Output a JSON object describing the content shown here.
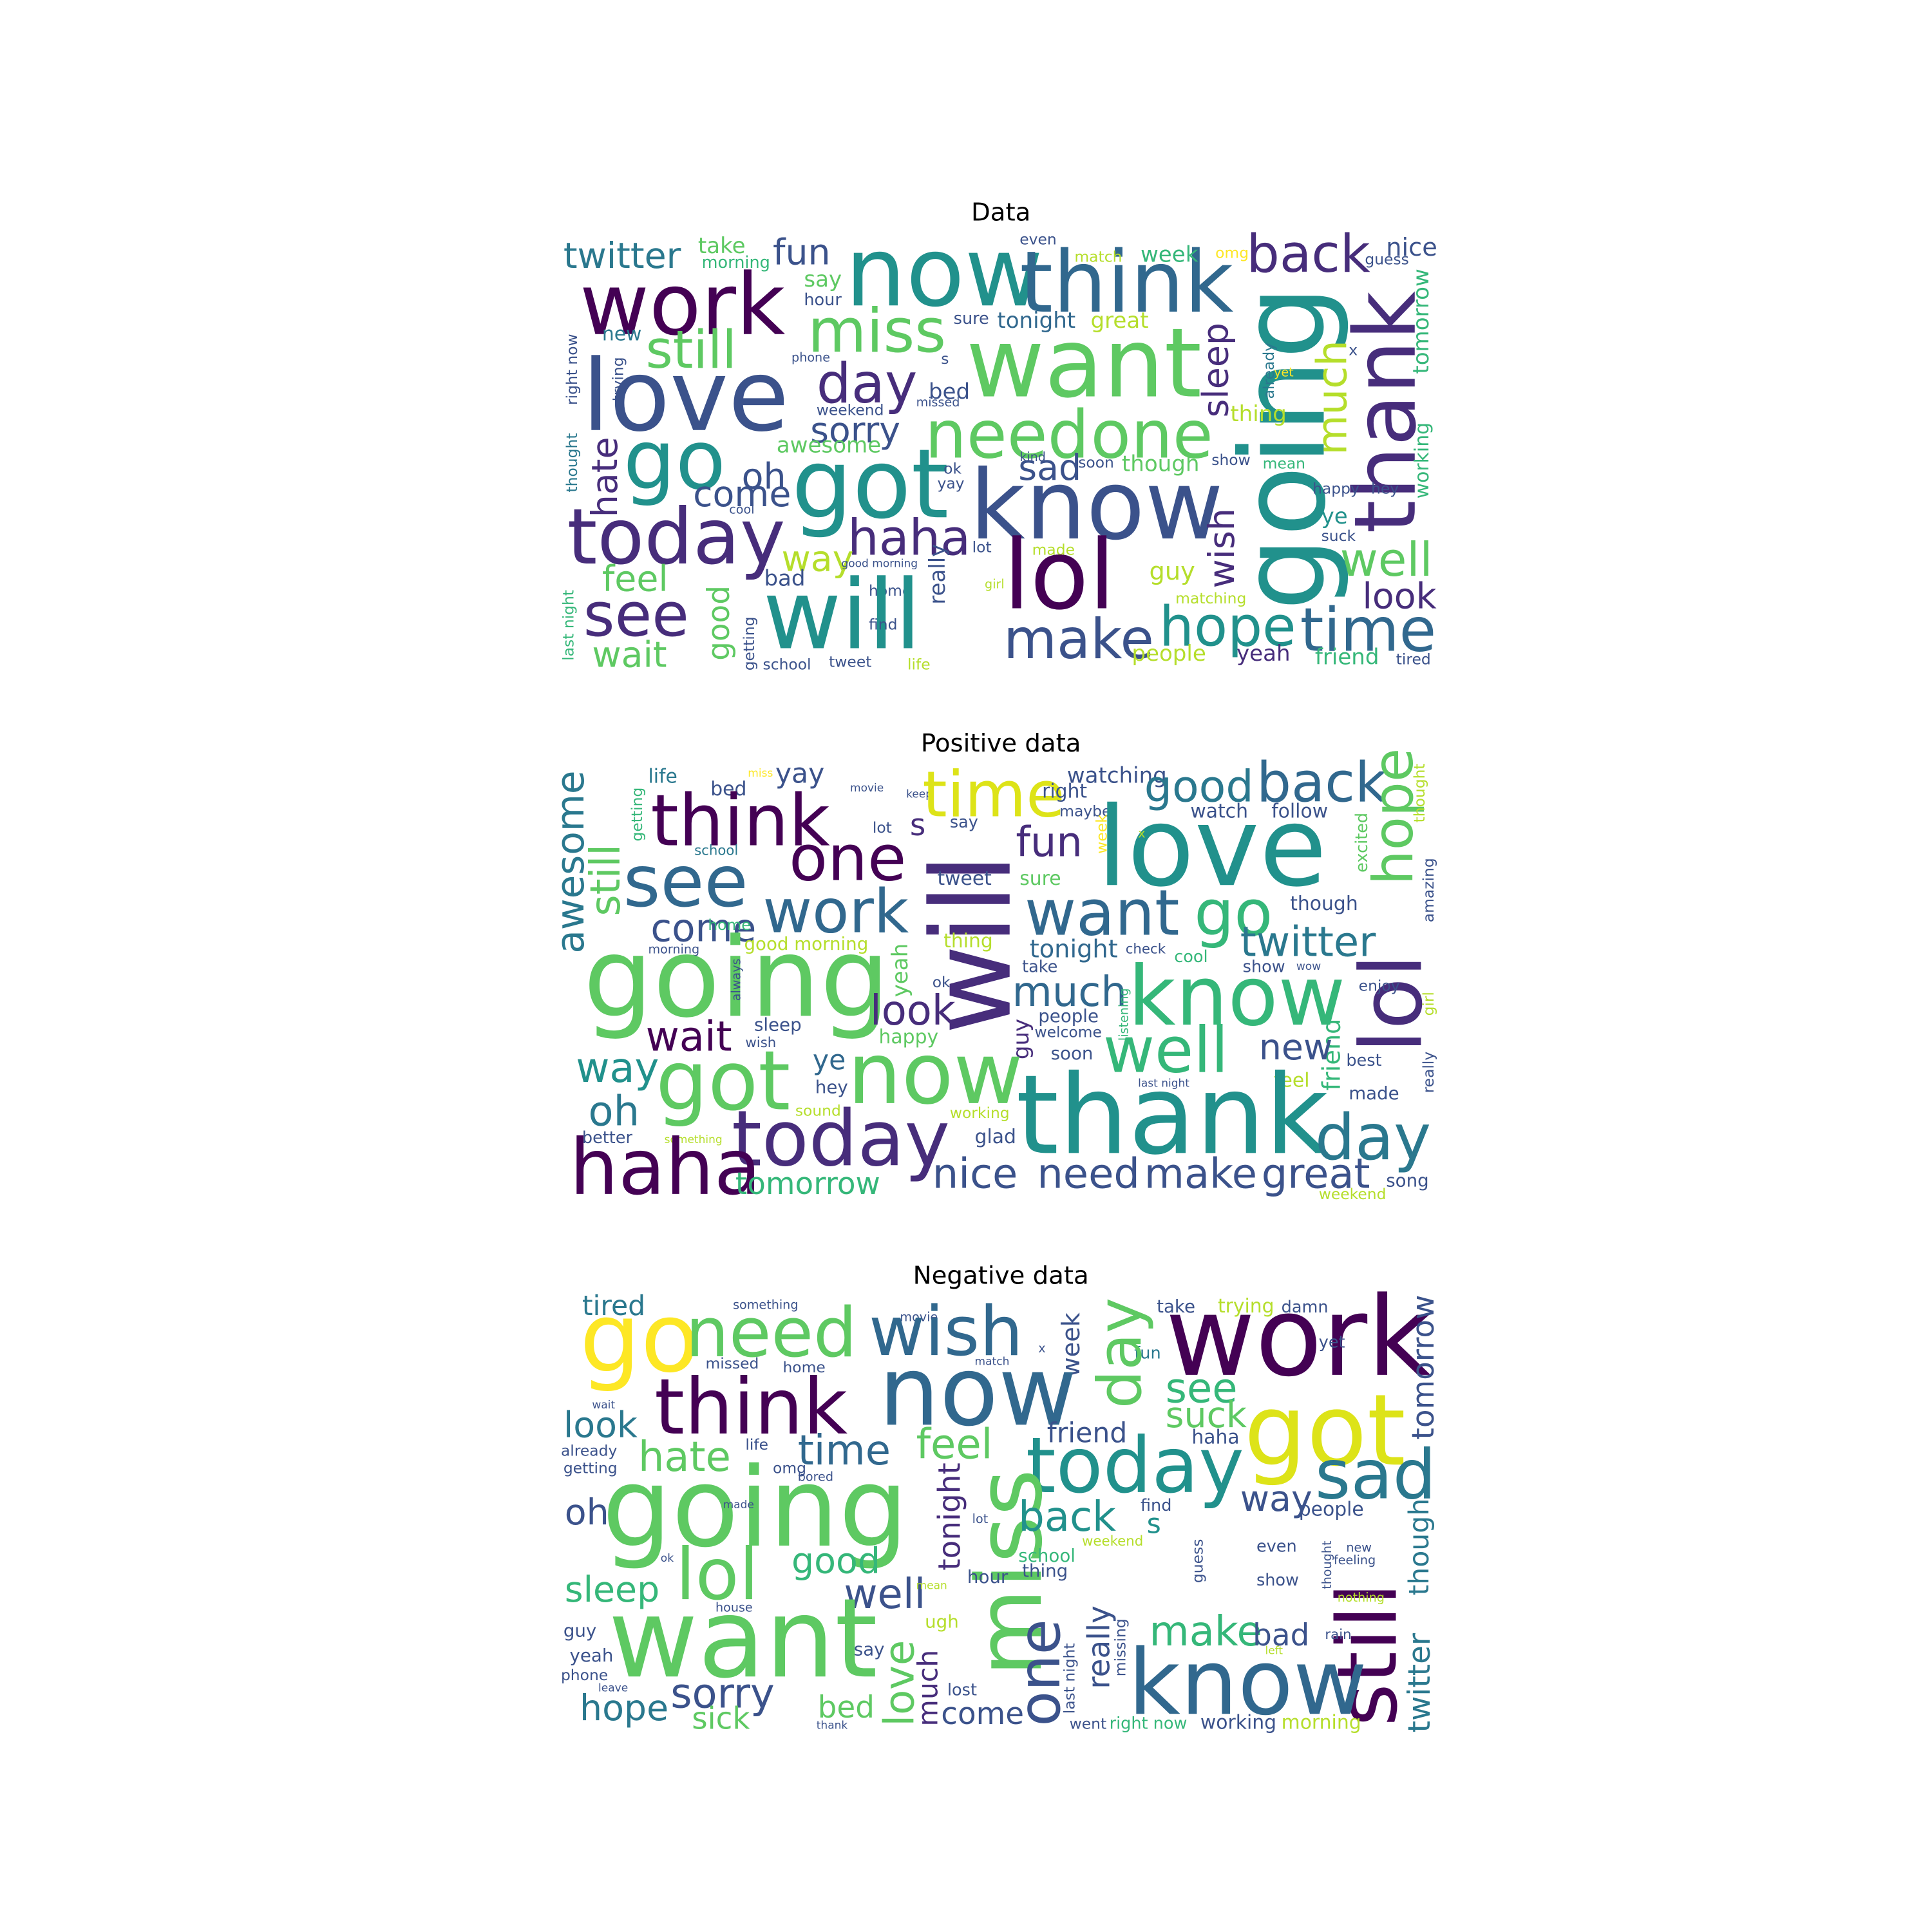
{
  "panels": [
    {
      "title": "Data",
      "words": [
        "twitter",
        "take",
        "morning",
        "fun",
        "now",
        "think",
        "back",
        "nice",
        "even",
        "match",
        "week",
        "omg",
        "guess",
        "work",
        "say",
        "hour",
        "miss",
        "want",
        "sure",
        "tonight",
        "great",
        "going",
        "thank",
        "still",
        "new",
        "right now",
        "trying",
        "love",
        "day",
        "phone",
        "s",
        "bed",
        "weekend",
        "missed",
        "sleep",
        "already",
        "yet",
        "x",
        "tomorrow",
        "thing",
        "much",
        "need",
        "one",
        "go",
        "sorry",
        "awesome",
        "kind",
        "soon",
        "though",
        "show",
        "mean",
        "working",
        "got",
        "sad",
        "ok",
        "yay",
        "hate",
        "oh",
        "come",
        "cool",
        "know",
        "happy",
        "hey",
        "ye",
        "suck",
        "thought",
        "wish",
        "today",
        "haha",
        "lot",
        "made",
        "lol",
        "well",
        "feel",
        "way",
        "good morning",
        "bad",
        "home",
        "guy",
        "girl",
        "really",
        "see",
        "will",
        "find",
        "matching",
        "look",
        "hope",
        "time",
        "make",
        "good",
        "getting",
        "last night",
        "wait",
        "school",
        "tweet",
        "life",
        "people",
        "yeah",
        "friend",
        "tired"
      ]
    },
    {
      "title": "Positive data",
      "words": [
        "life",
        "yay",
        "bed",
        "miss",
        "movie",
        "keep",
        "time",
        "right",
        "watching",
        "maybe",
        "good",
        "back",
        "hope",
        "thought",
        "follow",
        "watch",
        "awesome",
        "still",
        "getting",
        "think",
        "s",
        "say",
        "lot",
        "school",
        "one",
        "see",
        "fun",
        "love",
        "will",
        "week",
        "x",
        "excited",
        "amazing",
        "work",
        "want",
        "go",
        "tweet",
        "sure",
        "though",
        "twitter",
        "come",
        "home",
        "morning",
        "thing",
        "tonight",
        "check",
        "cool",
        "show",
        "wow",
        "going",
        "good morning",
        "always",
        "yeah",
        "ok",
        "much",
        "take",
        "know",
        "lol",
        "enjoy",
        "look",
        "people",
        "sleep",
        "welcome",
        "wait",
        "listening",
        "wish",
        "happy",
        "guy",
        "friend",
        "girl",
        "really",
        "new",
        "best",
        "well",
        "way",
        "ye",
        "soon",
        "now",
        "got",
        "hey",
        "made",
        "oh",
        "feel",
        "sound",
        "working",
        "thank",
        "last night",
        "day",
        "better",
        "something",
        "glad",
        "today",
        "haha",
        "tomorrow",
        "nice",
        "need",
        "make",
        "great",
        "song",
        "weekend"
      ]
    },
    {
      "title": "Negative data",
      "words": [
        "something",
        "tired",
        "trying",
        "damn",
        "take",
        "movie",
        "match",
        "x",
        "fun",
        "go",
        "need",
        "wish",
        "work",
        "yet",
        "tomorrow",
        "day",
        "week",
        "missed",
        "home",
        "now",
        "think",
        "see",
        "got",
        "look",
        "wait",
        "suck",
        "friend",
        "haha",
        "feel",
        "hate",
        "time",
        "already",
        "life",
        "getting",
        "today",
        "sad",
        "omg",
        "bored",
        "going",
        "tonight",
        "miss",
        "way",
        "oh",
        "made",
        "back",
        "s",
        "find",
        "people",
        "though",
        "lol",
        "good",
        "school",
        "weekend",
        "even",
        "lot",
        "feeling",
        "new",
        "thought",
        "guess",
        "ok",
        "sleep",
        "well",
        "mean",
        "hour",
        "thing",
        "show",
        "still",
        "nothing",
        "house",
        "want",
        "rain",
        "guy",
        "ugh",
        "make",
        "bad",
        "left",
        "twitter",
        "yeah",
        "say",
        "one",
        "really",
        "last night",
        "missing",
        "love",
        "phone",
        "leave",
        "sorry",
        "much",
        "lost",
        "know",
        "hope",
        "sick",
        "bed",
        "come",
        "thank",
        "went",
        "right now",
        "working",
        "morning"
      ]
    }
  ]
}
